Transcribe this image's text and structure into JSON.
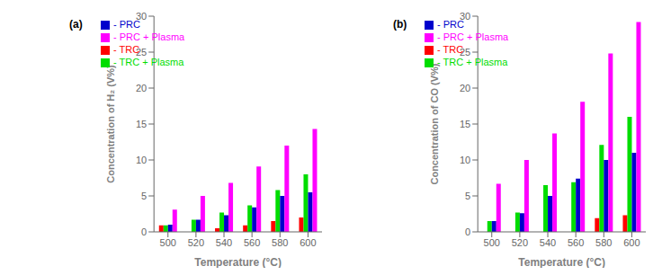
{
  "chart_data": [
    {
      "type": "bar",
      "xlabel": "Temperature (°C)",
      "ylabel": "Concentration of H₂ (V%)",
      "annotations": [
        "(a)"
      ],
      "categories": [
        500,
        520,
        540,
        560,
        580,
        600
      ],
      "series": [
        {
          "name": "- TRC",
          "color": "#ff0000",
          "values": [
            0.9,
            0.0,
            0.5,
            0.9,
            1.5,
            2.0
          ]
        },
        {
          "name": "- TRC + Plasma",
          "color": "#00dd00",
          "values": [
            0.9,
            1.7,
            2.7,
            3.7,
            5.8,
            8.0
          ]
        },
        {
          "name": "- PRC",
          "color": "#0000cc",
          "values": [
            1.0,
            1.7,
            2.3,
            3.4,
            5.0,
            5.5
          ]
        },
        {
          "name": "- PRC + Plasma",
          "color": "#ff00ff",
          "values": [
            3.1,
            5.0,
            6.8,
            9.1,
            12.0,
            14.3
          ]
        }
      ],
      "ylim": [
        0,
        30
      ],
      "yticks": [
        0,
        5,
        10,
        15,
        20,
        25,
        30
      ],
      "grid": false,
      "legend": "upper left"
    },
    {
      "type": "bar",
      "xlabel": "Temperature (°C)",
      "ylabel": "Concentration of CO (V%)",
      "annotations": [
        "(b)"
      ],
      "categories": [
        500,
        520,
        540,
        560,
        580,
        600
      ],
      "series": [
        {
          "name": "- TRC",
          "color": "#ff0000",
          "values": [
            0.0,
            0.0,
            0.0,
            0.0,
            1.9,
            2.3
          ]
        },
        {
          "name": "- TRC + Plasma",
          "color": "#00dd00",
          "values": [
            1.5,
            2.7,
            6.5,
            6.9,
            12.1,
            16.0
          ]
        },
        {
          "name": "- PRC",
          "color": "#0000cc",
          "values": [
            1.5,
            2.6,
            5.0,
            7.4,
            10.0,
            11.0
          ]
        },
        {
          "name": "- PRC + Plasma",
          "color": "#ff00ff",
          "values": [
            6.7,
            10.0,
            13.7,
            18.1,
            24.8,
            29.2
          ]
        }
      ],
      "ylim": [
        0,
        30
      ],
      "yticks": [
        0,
        5,
        10,
        15,
        20,
        25,
        30
      ],
      "grid": false,
      "legend": "upper left"
    }
  ]
}
